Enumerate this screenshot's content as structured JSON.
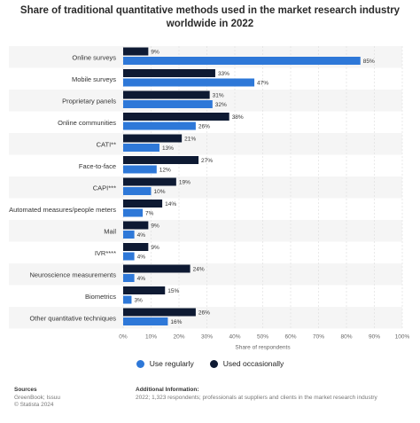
{
  "title": "Share of traditional quantitative methods used in the market research industry worldwide in 2022",
  "chart_data": {
    "type": "bar",
    "orientation": "horizontal",
    "title": "Share of traditional quantitative methods used in the market research industry worldwide in 2022",
    "xlabel": "Share of respondents",
    "ylabel": "",
    "xlim": [
      0,
      100
    ],
    "tick_labels": [
      "0%",
      "10%",
      "20%",
      "30%",
      "40%",
      "50%",
      "60%",
      "70%",
      "80%",
      "90%",
      "100%"
    ],
    "categories": [
      "Online surveys",
      "Mobile surveys",
      "Proprietary panels",
      "Online communities",
      "CATI**",
      "Face-to-face",
      "CAPI***",
      "Automated measures/people meters",
      "Mail",
      "IVR****",
      "Neuroscience measurements",
      "Biometrics",
      "Other quantitative techniques"
    ],
    "series": [
      {
        "name": "Used occasionally",
        "color": "#0e1a33",
        "values": [
          9,
          33,
          31,
          38,
          21,
          27,
          19,
          14,
          9,
          9,
          24,
          15,
          26
        ]
      },
      {
        "name": "Use regularly",
        "color": "#2e78d8",
        "values": [
          85,
          47,
          32,
          26,
          13,
          12,
          10,
          7,
          4,
          4,
          4,
          3,
          16
        ]
      }
    ],
    "value_suffix": "%",
    "legend_position": "bottom",
    "grid": true
  },
  "legend": [
    {
      "label": "Use regularly",
      "color": "#2e78d8"
    },
    {
      "label": "Used occasionally",
      "color": "#0e1a33"
    }
  ],
  "footer": {
    "sources_heading": "Sources",
    "sources_line1": "GreenBook; Issuu",
    "sources_line2": "© Statista 2024",
    "info_heading": "Additional Information:",
    "info_line1": "2022; 1,323 respondents; professionals at suppliers and clients in the market research industry"
  }
}
